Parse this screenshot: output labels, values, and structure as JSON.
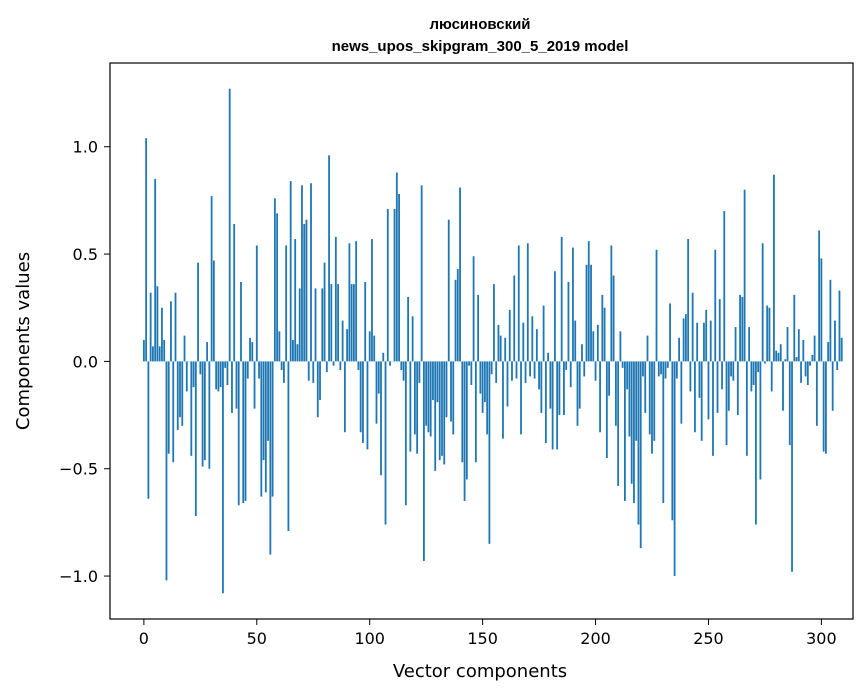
{
  "chart_data": {
    "type": "bar",
    "title": "люсиновский",
    "subtitle": "news_upos_skipgram_300_5_2019 model",
    "xlabel": "Vector components",
    "ylabel": "Components values",
    "xlim": [
      -15,
      314
    ],
    "ylim": [
      -1.2,
      1.39
    ],
    "xticks": [
      0,
      50,
      100,
      150,
      200,
      250,
      300
    ],
    "xtick_labels": [
      "0",
      "50",
      "100",
      "150",
      "200",
      "250",
      "300"
    ],
    "yticks": [
      -1.0,
      -0.5,
      0.0,
      0.5,
      1.0
    ],
    "ytick_labels": [
      "−1.0",
      "−0.5",
      "0.0",
      "0.5",
      "1.0"
    ],
    "grid": false,
    "bar_color": "#1f77b4",
    "series": [
      {
        "values": [
          0.1,
          1.04,
          -0.64,
          0.32,
          0.07,
          0.85,
          0.35,
          0.07,
          0.25,
          0.1,
          -1.02,
          -0.43,
          0.28,
          -0.47,
          0.32,
          -0.32,
          -0.26,
          -0.3,
          0.12,
          -0.14,
          0.0,
          -0.44,
          -0.12,
          -0.72,
          0.46,
          -0.06,
          -0.49,
          -0.46,
          0.09,
          -0.5,
          0.77,
          0.47,
          -0.13,
          -0.14,
          -0.12,
          -1.08,
          -0.03,
          -0.11,
          1.27,
          -0.24,
          0.64,
          -0.22,
          -0.67,
          0.37,
          -0.66,
          -0.65,
          -0.08,
          0.11,
          0.09,
          -0.22,
          0.54,
          -0.08,
          -0.63,
          -0.46,
          -0.61,
          -0.37,
          -0.9,
          -0.63,
          0.76,
          0.69,
          0.14,
          -0.04,
          -0.1,
          0.54,
          -0.79,
          0.84,
          0.1,
          0.57,
          0.08,
          0.34,
          0.82,
          0.64,
          0.66,
          -0.09,
          0.83,
          -0.1,
          0.34,
          -0.26,
          -0.18,
          0.34,
          0.46,
          -0.05,
          0.96,
          0.36,
          -0.02,
          0.58,
          0.36,
          -0.04,
          0.19,
          -0.33,
          0.15,
          0.55,
          0.36,
          0.36,
          0.56,
          -0.04,
          -0.33,
          -0.38,
          0.37,
          -0.41,
          0.14,
          0.57,
          0.12,
          -0.29,
          -0.15,
          -0.53,
          0.04,
          -0.76,
          0.71,
          -0.02,
          0.0,
          0.71,
          0.88,
          0.78,
          -0.04,
          -0.09,
          -0.67,
          0.3,
          -0.42,
          0.21,
          -0.34,
          -0.43,
          -0.1,
          0.82,
          -0.93,
          -0.3,
          -0.33,
          -0.35,
          -0.18,
          -0.51,
          -0.19,
          -0.46,
          -0.44,
          -0.48,
          -0.26,
          0.66,
          -0.28,
          -0.34,
          0.38,
          0.43,
          0.81,
          -0.47,
          -0.65,
          -0.55,
          -0.02,
          -0.11,
          0.49,
          -0.47,
          0.31,
          -0.15,
          -0.24,
          -0.19,
          -0.34,
          -0.85,
          -0.06,
          0.36,
          -0.1,
          0.17,
          0.12,
          -0.36,
          0.11,
          -0.21,
          0.24,
          -0.09,
          0.4,
          -0.08,
          0.54,
          -0.34,
          0.18,
          -0.1,
          0.55,
          -0.07,
          0.21,
          -0.08,
          0.15,
          -0.13,
          -0.24,
          0.26,
          -0.38,
          0.04,
          -0.22,
          -0.41,
          0.42,
          -0.41,
          -0.25,
          0.58,
          -0.25,
          -0.04,
          0.37,
          -0.12,
          0.53,
          0.19,
          -0.3,
          -0.22,
          0.08,
          -0.07,
          0.45,
          0.56,
          0.45,
          0.14,
          -0.09,
          0.17,
          -0.33,
          0.31,
          0.25,
          -0.45,
          -0.16,
          0.54,
          0.4,
          -0.3,
          -0.58,
          0.14,
          -0.03,
          -0.65,
          -0.13,
          -0.35,
          -0.57,
          -0.66,
          -0.37,
          -0.76,
          -0.87,
          -0.07,
          -0.24,
          0.12,
          -0.34,
          -0.43,
          -0.37,
          0.52,
          -0.07,
          -0.06,
          -0.66,
          -0.08,
          -0.03,
          0.27,
          -0.74,
          -1.0,
          -0.08,
          0.11,
          -0.29,
          0.2,
          0.22,
          0.57,
          -0.14,
          0.32,
          -0.33,
          0.18,
          -0.17,
          -0.37,
          0.18,
          0.24,
          -0.27,
          0.19,
          -0.44,
          0.52,
          -0.24,
          0.29,
          -0.13,
          0.7,
          -0.39,
          -0.23,
          -0.07,
          -0.09,
          0.16,
          -0.25,
          0.31,
          0.3,
          0.8,
          -0.44,
          0.16,
          -0.14,
          -0.11,
          -0.76,
          -0.05,
          -0.55,
          0.55,
          -0.01,
          0.26,
          0.25,
          -0.14,
          0.87,
          0.05,
          0.04,
          0.08,
          -0.23,
          0.01,
          0.16,
          -0.39,
          -0.98,
          0.31,
          0.02,
          0.15,
          -0.1,
          0.1,
          -0.07,
          -0.11,
          -0.02,
          0.03,
          0.12,
          -0.3,
          0.61,
          0.48,
          -0.42,
          -0.43,
          0.09,
          0.38,
          -0.23,
          0.19,
          -0.04,
          0.33,
          0.11
        ]
      }
    ]
  }
}
